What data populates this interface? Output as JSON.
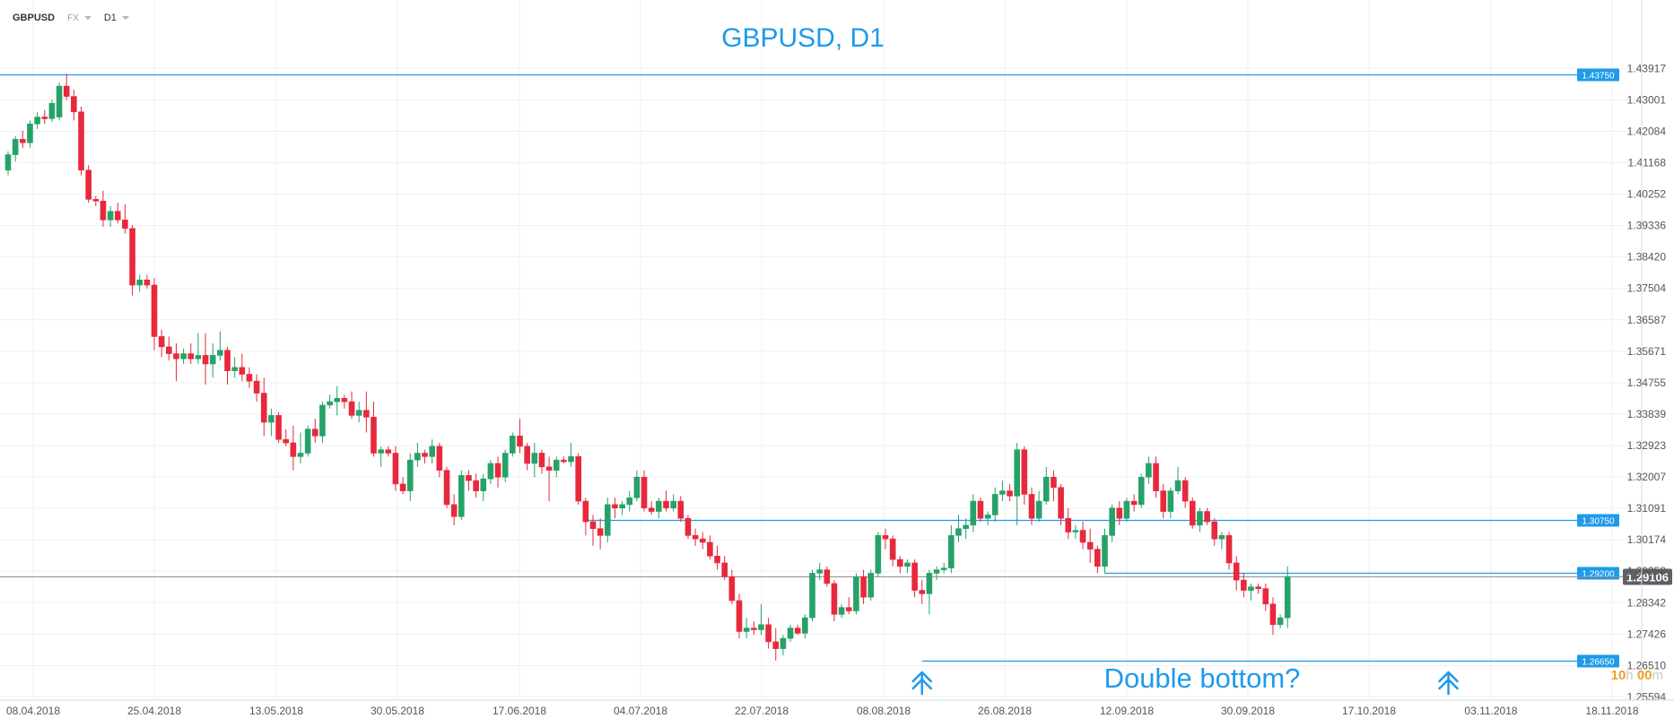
{
  "toolbar": {
    "symbol": "GBPUSD",
    "market": "FX",
    "timeframe": "D1"
  },
  "countdown": {
    "hours": "10",
    "h_unit": "h",
    "minutes": "00",
    "m_unit": "m"
  },
  "colors": {
    "up": "#26a269",
    "down": "#e8283c",
    "accent": "#1e9be9",
    "grid": "#eef0f2",
    "axis_text": "#555555",
    "price_badge": "#5d6066"
  },
  "chart_data": {
    "type": "candlestick",
    "title": "GBPUSD, D1",
    "annotation": "Double bottom?",
    "ylim": [
      1.255,
      1.445
    ],
    "y_ticks": [
      "1.43917",
      "1.43001",
      "1.42084",
      "1.41168",
      "1.40252",
      "1.39336",
      "1.38420",
      "1.37504",
      "1.36587",
      "1.35671",
      "1.34755",
      "1.33839",
      "1.32923",
      "1.32007",
      "1.31091",
      "1.30174",
      "1.29258",
      "1.28342",
      "1.27426",
      "1.26510",
      "1.25594"
    ],
    "x_ticks": [
      "08.04.2018",
      "25.04.2018",
      "13.05.2018",
      "30.05.2018",
      "17.06.2018",
      "04.07.2018",
      "22.07.2018",
      "08.08.2018",
      "26.08.2018",
      "12.09.2018",
      "30.09.2018",
      "17.10.2018",
      "03.11.2018",
      "18.11.2018"
    ],
    "current_price": "1.29106",
    "levels": [
      {
        "label": "1.43750",
        "value": 1.4375,
        "from": 0,
        "to": "right"
      },
      {
        "label": "1.30750",
        "value": 1.3075,
        "from": 79,
        "to": "right"
      },
      {
        "label": "1.29200",
        "value": 1.292,
        "from": 150,
        "to": "right"
      },
      {
        "label": "1.26650",
        "value": 1.2665,
        "from": 125,
        "to": "right"
      }
    ],
    "arrows_at_candle": [
      125,
      197
    ],
    "candles": [
      {
        "o": 1.4095,
        "h": 1.415,
        "l": 1.408,
        "c": 1.414
      },
      {
        "o": 1.414,
        "h": 1.4195,
        "l": 1.412,
        "c": 1.4185
      },
      {
        "o": 1.4185,
        "h": 1.421,
        "l": 1.416,
        "c": 1.4175
      },
      {
        "o": 1.4175,
        "h": 1.424,
        "l": 1.416,
        "c": 1.423
      },
      {
        "o": 1.423,
        "h": 1.4265,
        "l": 1.4215,
        "c": 1.425
      },
      {
        "o": 1.425,
        "h": 1.427,
        "l": 1.423,
        "c": 1.4245
      },
      {
        "o": 1.4245,
        "h": 1.43,
        "l": 1.4235,
        "c": 1.429
      },
      {
        "o": 1.425,
        "h": 1.435,
        "l": 1.424,
        "c": 1.434
      },
      {
        "o": 1.434,
        "h": 1.4376,
        "l": 1.43,
        "c": 1.431
      },
      {
        "o": 1.431,
        "h": 1.433,
        "l": 1.424,
        "c": 1.4265
      },
      {
        "o": 1.4265,
        "h": 1.428,
        "l": 1.408,
        "c": 1.4095
      },
      {
        "o": 1.4095,
        "h": 1.411,
        "l": 1.4,
        "c": 1.401
      },
      {
        "o": 1.401,
        "h": 1.402,
        "l": 1.399,
        "c": 1.4005
      },
      {
        "o": 1.4005,
        "h": 1.4035,
        "l": 1.393,
        "c": 1.395
      },
      {
        "o": 1.395,
        "h": 1.399,
        "l": 1.393,
        "c": 1.3975
      },
      {
        "o": 1.3975,
        "h": 1.4,
        "l": 1.394,
        "c": 1.395
      },
      {
        "o": 1.395,
        "h": 1.3995,
        "l": 1.391,
        "c": 1.3925
      },
      {
        "o": 1.3925,
        "h": 1.3935,
        "l": 1.373,
        "c": 1.376
      },
      {
        "o": 1.376,
        "h": 1.379,
        "l": 1.374,
        "c": 1.3775
      },
      {
        "o": 1.3775,
        "h": 1.379,
        "l": 1.375,
        "c": 1.376
      },
      {
        "o": 1.376,
        "h": 1.378,
        "l": 1.357,
        "c": 1.361
      },
      {
        "o": 1.361,
        "h": 1.363,
        "l": 1.355,
        "c": 1.358
      },
      {
        "o": 1.358,
        "h": 1.361,
        "l": 1.354,
        "c": 1.356
      },
      {
        "o": 1.356,
        "h": 1.359,
        "l": 1.348,
        "c": 1.3545
      },
      {
        "o": 1.3545,
        "h": 1.3575,
        "l": 1.353,
        "c": 1.356
      },
      {
        "o": 1.356,
        "h": 1.359,
        "l": 1.353,
        "c": 1.3545
      },
      {
        "o": 1.3545,
        "h": 1.362,
        "l": 1.353,
        "c": 1.3555
      },
      {
        "o": 1.3555,
        "h": 1.362,
        "l": 1.347,
        "c": 1.353
      },
      {
        "o": 1.353,
        "h": 1.359,
        "l": 1.349,
        "c": 1.3555
      },
      {
        "o": 1.3555,
        "h": 1.3625,
        "l": 1.354,
        "c": 1.357
      },
      {
        "o": 1.357,
        "h": 1.358,
        "l": 1.347,
        "c": 1.351
      },
      {
        "o": 1.351,
        "h": 1.355,
        "l": 1.349,
        "c": 1.352
      },
      {
        "o": 1.352,
        "h": 1.356,
        "l": 1.348,
        "c": 1.35
      },
      {
        "o": 1.35,
        "h": 1.352,
        "l": 1.346,
        "c": 1.348
      },
      {
        "o": 1.348,
        "h": 1.35,
        "l": 1.342,
        "c": 1.3445
      },
      {
        "o": 1.3445,
        "h": 1.349,
        "l": 1.332,
        "c": 1.336
      },
      {
        "o": 1.336,
        "h": 1.34,
        "l": 1.332,
        "c": 1.338
      },
      {
        "o": 1.338,
        "h": 1.339,
        "l": 1.33,
        "c": 1.331
      },
      {
        "o": 1.331,
        "h": 1.334,
        "l": 1.329,
        "c": 1.33
      },
      {
        "o": 1.33,
        "h": 1.335,
        "l": 1.322,
        "c": 1.326
      },
      {
        "o": 1.326,
        "h": 1.333,
        "l": 1.324,
        "c": 1.327
      },
      {
        "o": 1.327,
        "h": 1.335,
        "l": 1.326,
        "c": 1.334
      },
      {
        "o": 1.334,
        "h": 1.337,
        "l": 1.33,
        "c": 1.332
      },
      {
        "o": 1.332,
        "h": 1.342,
        "l": 1.33,
        "c": 1.341
      },
      {
        "o": 1.341,
        "h": 1.344,
        "l": 1.34,
        "c": 1.342
      },
      {
        "o": 1.342,
        "h": 1.3465,
        "l": 1.338,
        "c": 1.343
      },
      {
        "o": 1.343,
        "h": 1.344,
        "l": 1.34,
        "c": 1.342
      },
      {
        "o": 1.342,
        "h": 1.345,
        "l": 1.337,
        "c": 1.338
      },
      {
        "o": 1.338,
        "h": 1.342,
        "l": 1.336,
        "c": 1.3395
      },
      {
        "o": 1.3395,
        "h": 1.345,
        "l": 1.333,
        "c": 1.3375
      },
      {
        "o": 1.3375,
        "h": 1.342,
        "l": 1.326,
        "c": 1.327
      },
      {
        "o": 1.327,
        "h": 1.329,
        "l": 1.323,
        "c": 1.328
      },
      {
        "o": 1.328,
        "h": 1.329,
        "l": 1.326,
        "c": 1.327
      },
      {
        "o": 1.327,
        "h": 1.329,
        "l": 1.316,
        "c": 1.318
      },
      {
        "o": 1.318,
        "h": 1.32,
        "l": 1.315,
        "c": 1.316
      },
      {
        "o": 1.316,
        "h": 1.327,
        "l": 1.313,
        "c": 1.325
      },
      {
        "o": 1.325,
        "h": 1.33,
        "l": 1.323,
        "c": 1.327
      },
      {
        "o": 1.327,
        "h": 1.328,
        "l": 1.324,
        "c": 1.326
      },
      {
        "o": 1.326,
        "h": 1.331,
        "l": 1.324,
        "c": 1.329
      },
      {
        "o": 1.329,
        "h": 1.33,
        "l": 1.32,
        "c": 1.322
      },
      {
        "o": 1.322,
        "h": 1.323,
        "l": 1.311,
        "c": 1.312
      },
      {
        "o": 1.312,
        "h": 1.315,
        "l": 1.306,
        "c": 1.3085
      },
      {
        "o": 1.3085,
        "h": 1.322,
        "l": 1.3075,
        "c": 1.3205
      },
      {
        "o": 1.3205,
        "h": 1.322,
        "l": 1.316,
        "c": 1.319
      },
      {
        "o": 1.319,
        "h": 1.321,
        "l": 1.314,
        "c": 1.316
      },
      {
        "o": 1.316,
        "h": 1.321,
        "l": 1.313,
        "c": 1.3195
      },
      {
        "o": 1.3195,
        "h": 1.325,
        "l": 1.318,
        "c": 1.324
      },
      {
        "o": 1.324,
        "h": 1.326,
        "l": 1.317,
        "c": 1.32
      },
      {
        "o": 1.32,
        "h": 1.328,
        "l": 1.3185,
        "c": 1.327
      },
      {
        "o": 1.327,
        "h": 1.333,
        "l": 1.326,
        "c": 1.332
      },
      {
        "o": 1.332,
        "h": 1.337,
        "l": 1.327,
        "c": 1.329
      },
      {
        "o": 1.329,
        "h": 1.33,
        "l": 1.322,
        "c": 1.324
      },
      {
        "o": 1.324,
        "h": 1.33,
        "l": 1.32,
        "c": 1.327
      },
      {
        "o": 1.327,
        "h": 1.328,
        "l": 1.321,
        "c": 1.323
      },
      {
        "o": 1.323,
        "h": 1.326,
        "l": 1.313,
        "c": 1.322
      },
      {
        "o": 1.322,
        "h": 1.326,
        "l": 1.32,
        "c": 1.325
      },
      {
        "o": 1.325,
        "h": 1.326,
        "l": 1.324,
        "c": 1.3245
      },
      {
        "o": 1.3245,
        "h": 1.33,
        "l": 1.323,
        "c": 1.326
      },
      {
        "o": 1.326,
        "h": 1.327,
        "l": 1.312,
        "c": 1.313
      },
      {
        "o": 1.313,
        "h": 1.314,
        "l": 1.303,
        "c": 1.307
      },
      {
        "o": 1.307,
        "h": 1.309,
        "l": 1.3,
        "c": 1.305
      },
      {
        "o": 1.305,
        "h": 1.308,
        "l": 1.299,
        "c": 1.303
      },
      {
        "o": 1.303,
        "h": 1.314,
        "l": 1.301,
        "c": 1.312
      },
      {
        "o": 1.312,
        "h": 1.314,
        "l": 1.308,
        "c": 1.311
      },
      {
        "o": 1.311,
        "h": 1.313,
        "l": 1.309,
        "c": 1.312
      },
      {
        "o": 1.312,
        "h": 1.316,
        "l": 1.31,
        "c": 1.314
      },
      {
        "o": 1.314,
        "h": 1.322,
        "l": 1.313,
        "c": 1.32
      },
      {
        "o": 1.32,
        "h": 1.322,
        "l": 1.31,
        "c": 1.311
      },
      {
        "o": 1.311,
        "h": 1.313,
        "l": 1.309,
        "c": 1.31
      },
      {
        "o": 1.31,
        "h": 1.314,
        "l": 1.308,
        "c": 1.313
      },
      {
        "o": 1.313,
        "h": 1.316,
        "l": 1.31,
        "c": 1.311
      },
      {
        "o": 1.311,
        "h": 1.315,
        "l": 1.31,
        "c": 1.313
      },
      {
        "o": 1.313,
        "h": 1.3145,
        "l": 1.307,
        "c": 1.308
      },
      {
        "o": 1.308,
        "h": 1.309,
        "l": 1.302,
        "c": 1.303
      },
      {
        "o": 1.303,
        "h": 1.305,
        "l": 1.3,
        "c": 1.302
      },
      {
        "o": 1.302,
        "h": 1.304,
        "l": 1.299,
        "c": 1.301
      },
      {
        "o": 1.301,
        "h": 1.303,
        "l": 1.296,
        "c": 1.297
      },
      {
        "o": 1.297,
        "h": 1.3,
        "l": 1.293,
        "c": 1.295
      },
      {
        "o": 1.295,
        "h": 1.297,
        "l": 1.29,
        "c": 1.291
      },
      {
        "o": 1.291,
        "h": 1.293,
        "l": 1.283,
        "c": 1.284
      },
      {
        "o": 1.284,
        "h": 1.286,
        "l": 1.273,
        "c": 1.275
      },
      {
        "o": 1.275,
        "h": 1.279,
        "l": 1.273,
        "c": 1.276
      },
      {
        "o": 1.276,
        "h": 1.278,
        "l": 1.274,
        "c": 1.2755
      },
      {
        "o": 1.2755,
        "h": 1.283,
        "l": 1.274,
        "c": 1.277
      },
      {
        "o": 1.277,
        "h": 1.279,
        "l": 1.27,
        "c": 1.272
      },
      {
        "o": 1.272,
        "h": 1.276,
        "l": 1.2665,
        "c": 1.27
      },
      {
        "o": 1.27,
        "h": 1.274,
        "l": 1.268,
        "c": 1.273
      },
      {
        "o": 1.273,
        "h": 1.277,
        "l": 1.272,
        "c": 1.276
      },
      {
        "o": 1.276,
        "h": 1.277,
        "l": 1.274,
        "c": 1.2745
      },
      {
        "o": 1.2745,
        "h": 1.28,
        "l": 1.273,
        "c": 1.279
      },
      {
        "o": 1.279,
        "h": 1.293,
        "l": 1.278,
        "c": 1.292
      },
      {
        "o": 1.292,
        "h": 1.295,
        "l": 1.29,
        "c": 1.293
      },
      {
        "o": 1.293,
        "h": 1.294,
        "l": 1.288,
        "c": 1.289
      },
      {
        "o": 1.289,
        "h": 1.29,
        "l": 1.278,
        "c": 1.28
      },
      {
        "o": 1.28,
        "h": 1.283,
        "l": 1.279,
        "c": 1.282
      },
      {
        "o": 1.282,
        "h": 1.285,
        "l": 1.28,
        "c": 1.281
      },
      {
        "o": 1.281,
        "h": 1.292,
        "l": 1.28,
        "c": 1.291
      },
      {
        "o": 1.291,
        "h": 1.293,
        "l": 1.283,
        "c": 1.285
      },
      {
        "o": 1.285,
        "h": 1.293,
        "l": 1.284,
        "c": 1.292
      },
      {
        "o": 1.292,
        "h": 1.304,
        "l": 1.291,
        "c": 1.303
      },
      {
        "o": 1.303,
        "h": 1.305,
        "l": 1.299,
        "c": 1.302
      },
      {
        "o": 1.302,
        "h": 1.303,
        "l": 1.294,
        "c": 1.296
      },
      {
        "o": 1.296,
        "h": 1.297,
        "l": 1.292,
        "c": 1.294
      },
      {
        "o": 1.294,
        "h": 1.296,
        "l": 1.292,
        "c": 1.295
      },
      {
        "o": 1.295,
        "h": 1.296,
        "l": 1.285,
        "c": 1.287
      },
      {
        "o": 1.287,
        "h": 1.29,
        "l": 1.283,
        "c": 1.286
      },
      {
        "o": 1.286,
        "h": 1.293,
        "l": 1.28,
        "c": 1.292
      },
      {
        "o": 1.292,
        "h": 1.294,
        "l": 1.29,
        "c": 1.293
      },
      {
        "o": 1.293,
        "h": 1.295,
        "l": 1.292,
        "c": 1.2935
      },
      {
        "o": 1.2935,
        "h": 1.306,
        "l": 1.292,
        "c": 1.303
      },
      {
        "o": 1.303,
        "h": 1.309,
        "l": 1.301,
        "c": 1.305
      },
      {
        "o": 1.305,
        "h": 1.308,
        "l": 1.302,
        "c": 1.306
      },
      {
        "o": 1.306,
        "h": 1.315,
        "l": 1.304,
        "c": 1.313
      },
      {
        "o": 1.313,
        "h": 1.314,
        "l": 1.307,
        "c": 1.308
      },
      {
        "o": 1.308,
        "h": 1.31,
        "l": 1.306,
        "c": 1.309
      },
      {
        "o": 1.309,
        "h": 1.317,
        "l": 1.307,
        "c": 1.315
      },
      {
        "o": 1.315,
        "h": 1.319,
        "l": 1.313,
        "c": 1.316
      },
      {
        "o": 1.316,
        "h": 1.318,
        "l": 1.313,
        "c": 1.3145
      },
      {
        "o": 1.3145,
        "h": 1.33,
        "l": 1.306,
        "c": 1.328
      },
      {
        "o": 1.328,
        "h": 1.329,
        "l": 1.312,
        "c": 1.315
      },
      {
        "o": 1.315,
        "h": 1.317,
        "l": 1.306,
        "c": 1.308
      },
      {
        "o": 1.308,
        "h": 1.316,
        "l": 1.307,
        "c": 1.313
      },
      {
        "o": 1.313,
        "h": 1.323,
        "l": 1.312,
        "c": 1.32
      },
      {
        "o": 1.32,
        "h": 1.322,
        "l": 1.313,
        "c": 1.317
      },
      {
        "o": 1.317,
        "h": 1.318,
        "l": 1.306,
        "c": 1.308
      },
      {
        "o": 1.308,
        "h": 1.311,
        "l": 1.302,
        "c": 1.304
      },
      {
        "o": 1.304,
        "h": 1.306,
        "l": 1.302,
        "c": 1.3045
      },
      {
        "o": 1.3045,
        "h": 1.307,
        "l": 1.299,
        "c": 1.301
      },
      {
        "o": 1.301,
        "h": 1.305,
        "l": 1.295,
        "c": 1.299
      },
      {
        "o": 1.299,
        "h": 1.3,
        "l": 1.292,
        "c": 1.294
      },
      {
        "o": 1.294,
        "h": 1.305,
        "l": 1.292,
        "c": 1.303
      },
      {
        "o": 1.303,
        "h": 1.312,
        "l": 1.301,
        "c": 1.311
      },
      {
        "o": 1.311,
        "h": 1.313,
        "l": 1.306,
        "c": 1.308
      },
      {
        "o": 1.308,
        "h": 1.314,
        "l": 1.307,
        "c": 1.313
      },
      {
        "o": 1.313,
        "h": 1.315,
        "l": 1.31,
        "c": 1.312
      },
      {
        "o": 1.312,
        "h": 1.321,
        "l": 1.311,
        "c": 1.32
      },
      {
        "o": 1.32,
        "h": 1.326,
        "l": 1.318,
        "c": 1.324
      },
      {
        "o": 1.324,
        "h": 1.326,
        "l": 1.314,
        "c": 1.316
      },
      {
        "o": 1.316,
        "h": 1.318,
        "l": 1.308,
        "c": 1.31
      },
      {
        "o": 1.31,
        "h": 1.317,
        "l": 1.308,
        "c": 1.316
      },
      {
        "o": 1.316,
        "h": 1.323,
        "l": 1.315,
        "c": 1.319
      },
      {
        "o": 1.319,
        "h": 1.32,
        "l": 1.311,
        "c": 1.313
      },
      {
        "o": 1.313,
        "h": 1.314,
        "l": 1.305,
        "c": 1.306
      },
      {
        "o": 1.306,
        "h": 1.311,
        "l": 1.304,
        "c": 1.31
      },
      {
        "o": 1.31,
        "h": 1.311,
        "l": 1.306,
        "c": 1.307
      },
      {
        "o": 1.307,
        "h": 1.308,
        "l": 1.3,
        "c": 1.302
      },
      {
        "o": 1.302,
        "h": 1.304,
        "l": 1.299,
        "c": 1.303
      },
      {
        "o": 1.303,
        "h": 1.304,
        "l": 1.293,
        "c": 1.295
      },
      {
        "o": 1.295,
        "h": 1.297,
        "l": 1.287,
        "c": 1.29
      },
      {
        "o": 1.29,
        "h": 1.292,
        "l": 1.285,
        "c": 1.287
      },
      {
        "o": 1.287,
        "h": 1.289,
        "l": 1.284,
        "c": 1.288
      },
      {
        "o": 1.288,
        "h": 1.289,
        "l": 1.286,
        "c": 1.2875
      },
      {
        "o": 1.2875,
        "h": 1.289,
        "l": 1.281,
        "c": 1.283
      },
      {
        "o": 1.283,
        "h": 1.285,
        "l": 1.274,
        "c": 1.277
      },
      {
        "o": 1.277,
        "h": 1.28,
        "l": 1.276,
        "c": 1.279
      },
      {
        "o": 1.279,
        "h": 1.294,
        "l": 1.276,
        "c": 1.291
      }
    ]
  }
}
